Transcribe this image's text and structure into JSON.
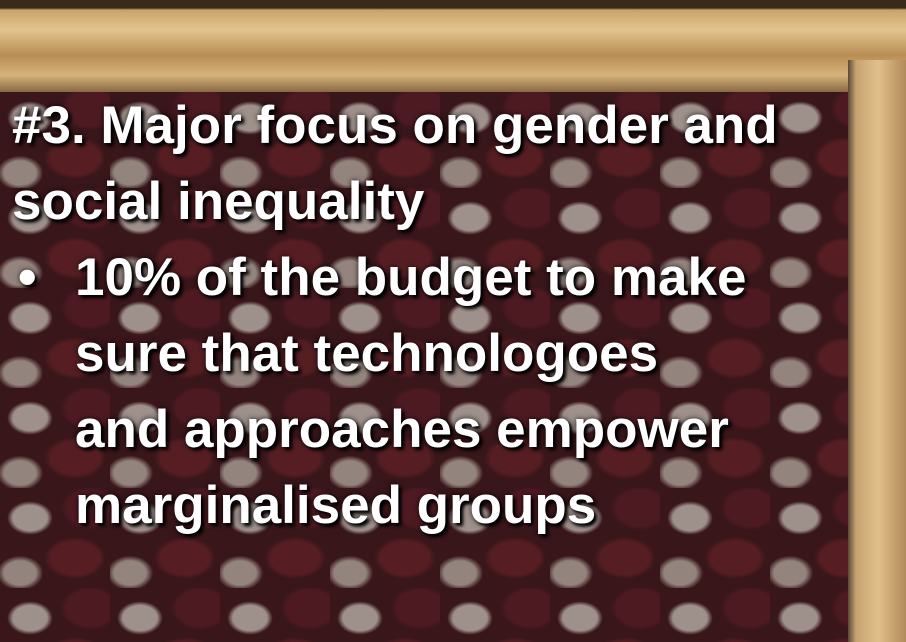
{
  "slide": {
    "title": "#3. Major focus on gender and social inequality",
    "bullets": [
      "10% of the budget to make sure that technologoes and approaches empower marginalised groups"
    ]
  }
}
